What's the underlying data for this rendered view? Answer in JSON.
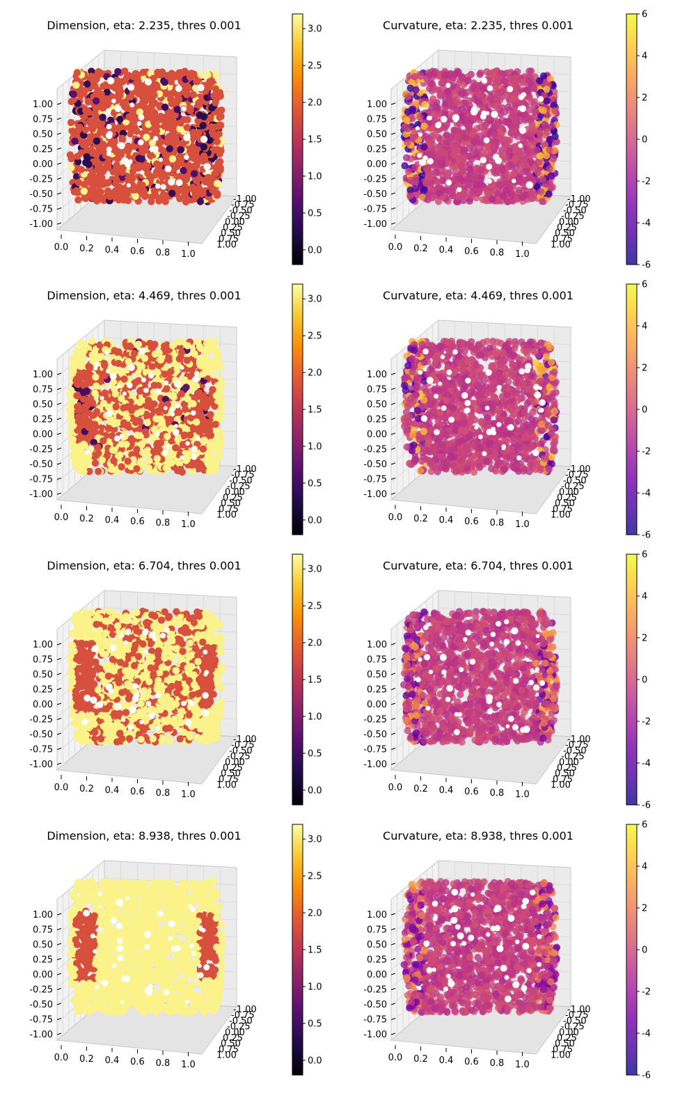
{
  "figure": {
    "grid": "4 rows x 2 columns",
    "point_cloud": "hollow cylinder (axis along x, x in [0,1], y,z in [-1,1])"
  },
  "chart_data": [
    {
      "type": "scatter3d",
      "title": "Dimension, eta: 2.235, thres 0.001",
      "metric": "dimension",
      "colormap": "inferno",
      "colorbar": {
        "min": -0.2,
        "max": 3.2,
        "ticks": [
          "0.0",
          "0.5",
          "1.0",
          "1.5",
          "2.0",
          "2.5",
          "3.0"
        ]
      },
      "x_ticks": [
        "0.0",
        "0.2",
        "0.4",
        "0.6",
        "0.8",
        "1.0"
      ],
      "y_ticks": [
        "-1.00",
        "-0.75",
        "-0.50",
        "-0.25",
        "0.00",
        "0.25",
        "0.50",
        "0.75",
        "1.00"
      ],
      "z_ticks": [
        "-1.00",
        "-0.75",
        "-0.50",
        "-0.25",
        "0.00",
        "0.25",
        "0.50",
        "0.75",
        "1.00"
      ],
      "dominant_value": 1.8,
      "rim_value": 3.1,
      "rim_fraction": 0.08,
      "end_cap_value": 1.8,
      "defect_value": 0.3,
      "defect_fraction": 0.12,
      "hole_value": -0.2
    },
    {
      "type": "scatter3d",
      "title": "Curvature, eta: 2.235, thres 0.001",
      "metric": "curvature",
      "colormap": "plasma",
      "colorbar": {
        "min": -6,
        "max": 6,
        "ticks": [
          "-6",
          "-4",
          "-2",
          "0",
          "2",
          "4",
          "6"
        ]
      },
      "x_ticks": [
        "0.0",
        "0.2",
        "0.4",
        "0.6",
        "0.8",
        "1.0"
      ],
      "y_ticks": [
        "-1.00",
        "-0.75",
        "-0.50",
        "-0.25",
        "0.00",
        "0.25",
        "0.50",
        "0.75",
        "1.00"
      ],
      "z_ticks": [
        "-1.00",
        "-0.75",
        "-0.50",
        "-0.25",
        "0.00",
        "0.25",
        "0.50",
        "0.75",
        "1.00"
      ],
      "dominant_value": -0.3,
      "rim_low": -5.5,
      "rim_high": 5,
      "edge_fraction": 0.55
    },
    {
      "type": "scatter3d",
      "title": "Dimension, eta: 4.469, thres 0.001",
      "metric": "dimension",
      "colormap": "inferno",
      "colorbar": {
        "min": -0.2,
        "max": 3.2,
        "ticks": [
          "0.0",
          "0.5",
          "1.0",
          "1.5",
          "2.0",
          "2.5",
          "3.0"
        ]
      },
      "x_ticks": [
        "0.0",
        "0.2",
        "0.4",
        "0.6",
        "0.8",
        "1.0"
      ],
      "y_ticks": [
        "-1.00",
        "-0.75",
        "-0.50",
        "-0.25",
        "0.00",
        "0.25",
        "0.50",
        "0.75",
        "1.00"
      ],
      "z_ticks": [
        "-1.00",
        "-0.75",
        "-0.50",
        "-0.25",
        "0.00",
        "0.25",
        "0.50",
        "0.75",
        "1.00"
      ],
      "dominant_value": 1.8,
      "rim_value": 3.1,
      "rim_fraction": 0.5,
      "end_cap_value": 1.8,
      "defect_value": 0.5,
      "defect_fraction": 0.04,
      "hole_value": 0.1
    },
    {
      "type": "scatter3d",
      "title": "Curvature, eta: 4.469, thres 0.001",
      "metric": "curvature",
      "colormap": "plasma",
      "colorbar": {
        "min": -6,
        "max": 6,
        "ticks": [
          "-6",
          "-4",
          "-2",
          "0",
          "2",
          "4",
          "6"
        ]
      },
      "x_ticks": [
        "0.0",
        "0.2",
        "0.4",
        "0.6",
        "0.8",
        "1.0"
      ],
      "y_ticks": [
        "-1.00",
        "-0.75",
        "-0.50",
        "-0.25",
        "0.00",
        "0.25",
        "0.50",
        "0.75",
        "1.00"
      ],
      "z_ticks": [
        "-1.00",
        "-0.75",
        "-0.50",
        "-0.25",
        "0.00",
        "0.25",
        "0.50",
        "0.75",
        "1.00"
      ],
      "dominant_value": -0.3,
      "rim_low": -4.5,
      "rim_high": 5,
      "edge_fraction": 0.45
    },
    {
      "type": "scatter3d",
      "title": "Dimension, eta: 6.704, thres 0.001",
      "metric": "dimension",
      "colormap": "inferno",
      "colorbar": {
        "min": -0.2,
        "max": 3.2,
        "ticks": [
          "0.0",
          "0.5",
          "1.0",
          "1.5",
          "2.0",
          "2.5",
          "3.0"
        ]
      },
      "x_ticks": [
        "0.0",
        "0.2",
        "0.4",
        "0.6",
        "0.8",
        "1.0"
      ],
      "y_ticks": [
        "-1.00",
        "-0.75",
        "-0.50",
        "-0.25",
        "0.00",
        "0.25",
        "0.50",
        "0.75",
        "1.00"
      ],
      "z_ticks": [
        "-1.00",
        "-0.75",
        "-0.50",
        "-0.25",
        "0.00",
        "0.25",
        "0.50",
        "0.75",
        "1.00"
      ],
      "dominant_value": 1.8,
      "rim_value": 3.1,
      "rim_fraction": 0.62,
      "end_cap_value": 1.8,
      "defect_value": 1.8,
      "defect_fraction": 0,
      "hole_value": 1.8
    },
    {
      "type": "scatter3d",
      "title": "Curvature, eta: 6.704, thres 0.001",
      "metric": "curvature",
      "colormap": "plasma",
      "colorbar": {
        "min": -6,
        "max": 6,
        "ticks": [
          "-6",
          "-4",
          "-2",
          "0",
          "2",
          "4",
          "6"
        ]
      },
      "x_ticks": [
        "0.0",
        "0.2",
        "0.4",
        "0.6",
        "0.8",
        "1.0"
      ],
      "y_ticks": [
        "-1.00",
        "-0.75",
        "-0.50",
        "-0.25",
        "0.00",
        "0.25",
        "0.50",
        "0.75",
        "1.00"
      ],
      "z_ticks": [
        "-1.00",
        "-0.75",
        "-0.50",
        "-0.25",
        "0.00",
        "0.25",
        "0.50",
        "0.75",
        "1.00"
      ],
      "dominant_value": -0.3,
      "rim_low": -4,
      "rim_high": 3.5,
      "edge_fraction": 0.5
    },
    {
      "type": "scatter3d",
      "title": "Dimension, eta: 8.938, thres 0.001",
      "metric": "dimension",
      "colormap": "inferno",
      "colorbar": {
        "min": -0.2,
        "max": 3.2,
        "ticks": [
          "0.0",
          "0.5",
          "1.0",
          "1.5",
          "2.0",
          "2.5",
          "3.0"
        ]
      },
      "x_ticks": [
        "0.0",
        "0.2",
        "0.4",
        "0.6",
        "0.8",
        "1.0"
      ],
      "y_ticks": [
        "-1.00",
        "-0.75",
        "-0.50",
        "-0.25",
        "0.00",
        "0.25",
        "0.50",
        "0.75",
        "1.00"
      ],
      "z_ticks": [
        "-1.00",
        "-0.75",
        "-0.50",
        "-0.25",
        "0.00",
        "0.25",
        "0.50",
        "0.75",
        "1.00"
      ],
      "dominant_value": 3.1,
      "rim_value": 3.1,
      "rim_fraction": 0.85,
      "end_cap_value": 1.8,
      "defect_value": 1.8,
      "defect_fraction": 0,
      "hole_value": 1.8
    },
    {
      "type": "scatter3d",
      "title": "Curvature, eta: 8.938, thres 0.001",
      "metric": "curvature",
      "colormap": "plasma",
      "colorbar": {
        "min": -6,
        "max": 6,
        "ticks": [
          "-6",
          "-4",
          "-2",
          "0",
          "2",
          "4",
          "6"
        ]
      },
      "x_ticks": [
        "0.0",
        "0.2",
        "0.4",
        "0.6",
        "0.8",
        "1.0"
      ],
      "y_ticks": [
        "-1.00",
        "-0.75",
        "-0.50",
        "-0.25",
        "0.00",
        "0.25",
        "0.50",
        "0.75",
        "1.00"
      ],
      "z_ticks": [
        "-1.00",
        "-0.75",
        "-0.50",
        "-0.25",
        "0.00",
        "0.25",
        "0.50",
        "0.75",
        "1.00"
      ],
      "dominant_value": -0.3,
      "rim_low": -3.5,
      "rim_high": 3,
      "edge_fraction": 0.6
    }
  ]
}
